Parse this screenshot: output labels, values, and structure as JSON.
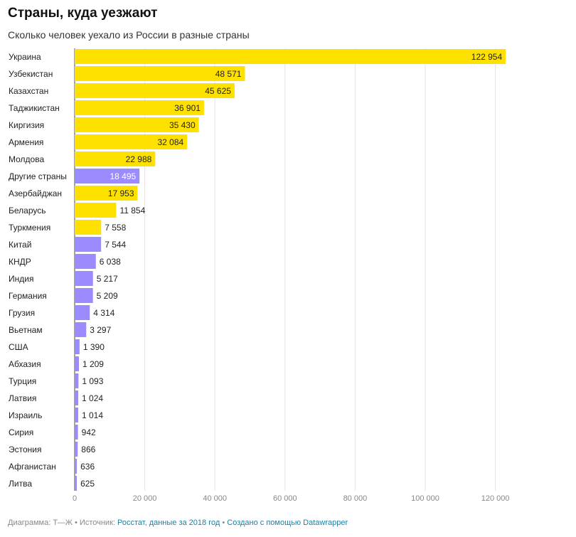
{
  "title": "Страны, куда уезжают",
  "subtitle": "Сколько человек уехало из России в разные страны",
  "footer": {
    "chart_label": "Диаграмма: Т—Ж",
    "sep1": " • ",
    "source_label": "Источник: ",
    "source_link": "Росстат, данные за 2018 год",
    "sep2": " • ",
    "made_with": "Создано с помощью Datawrapper"
  },
  "colors": {
    "former_ussr": "#ffe100",
    "other": "#9a8cff",
    "grid": "#e3e3e3"
  },
  "chart_data": {
    "type": "bar",
    "orientation": "horizontal",
    "xlim": [
      0,
      125000
    ],
    "ticks": [
      0,
      20000,
      40000,
      60000,
      80000,
      100000,
      120000
    ],
    "tick_labels": [
      "0",
      "20 000",
      "40 000",
      "60 000",
      "80 000",
      "100 000",
      "120 000"
    ],
    "grid": true,
    "bars": [
      {
        "label": "Украина",
        "value": 122954,
        "value_label": "122 954",
        "color": "#ffe100"
      },
      {
        "label": "Узбекистан",
        "value": 48571,
        "value_label": "48 571",
        "color": "#ffe100"
      },
      {
        "label": "Казахстан",
        "value": 45625,
        "value_label": "45 625",
        "color": "#ffe100"
      },
      {
        "label": "Таджикистан",
        "value": 36901,
        "value_label": "36 901",
        "color": "#ffe100"
      },
      {
        "label": "Киргизия",
        "value": 35430,
        "value_label": "35 430",
        "color": "#ffe100"
      },
      {
        "label": "Армения",
        "value": 32084,
        "value_label": "32 084",
        "color": "#ffe100"
      },
      {
        "label": "Молдова",
        "value": 22988,
        "value_label": "22 988",
        "color": "#ffe100"
      },
      {
        "label": "Другие страны",
        "value": 18495,
        "value_label": "18 495",
        "color": "#9a8cff"
      },
      {
        "label": "Азербайджан",
        "value": 17953,
        "value_label": "17 953",
        "color": "#ffe100"
      },
      {
        "label": "Беларусь",
        "value": 11854,
        "value_label": "11 854",
        "color": "#ffe100"
      },
      {
        "label": "Туркмения",
        "value": 7558,
        "value_label": "7 558",
        "color": "#ffe100"
      },
      {
        "label": "Китай",
        "value": 7544,
        "value_label": "7 544",
        "color": "#9a8cff"
      },
      {
        "label": "КНДР",
        "value": 6038,
        "value_label": "6 038",
        "color": "#9a8cff"
      },
      {
        "label": "Индия",
        "value": 5217,
        "value_label": "5 217",
        "color": "#9a8cff"
      },
      {
        "label": "Германия",
        "value": 5209,
        "value_label": "5 209",
        "color": "#9a8cff"
      },
      {
        "label": "Грузия",
        "value": 4314,
        "value_label": "4 314",
        "color": "#9a8cff"
      },
      {
        "label": "Вьетнам",
        "value": 3297,
        "value_label": "3 297",
        "color": "#9a8cff"
      },
      {
        "label": "США",
        "value": 1390,
        "value_label": "1 390",
        "color": "#9a8cff"
      },
      {
        "label": "Абхазия",
        "value": 1209,
        "value_label": "1 209",
        "color": "#9a8cff"
      },
      {
        "label": "Турция",
        "value": 1093,
        "value_label": "1 093",
        "color": "#9a8cff"
      },
      {
        "label": "Латвия",
        "value": 1024,
        "value_label": "1 024",
        "color": "#9a8cff"
      },
      {
        "label": "Израиль",
        "value": 1014,
        "value_label": "1 014",
        "color": "#9a8cff"
      },
      {
        "label": "Сирия",
        "value": 942,
        "value_label": "942",
        "color": "#9a8cff"
      },
      {
        "label": "Эстония",
        "value": 866,
        "value_label": "866",
        "color": "#9a8cff"
      },
      {
        "label": "Афганистан",
        "value": 636,
        "value_label": "636",
        "color": "#9a8cff"
      },
      {
        "label": "Литва",
        "value": 625,
        "value_label": "625",
        "color": "#9a8cff"
      }
    ]
  }
}
